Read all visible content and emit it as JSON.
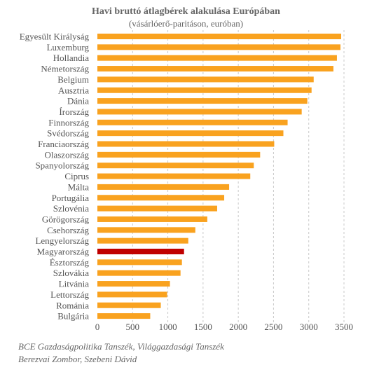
{
  "chart_data": {
    "type": "bar",
    "orientation": "horizontal",
    "title": "Havi bruttó átlagbérek alakulása Európában",
    "subtitle": "(vásárlóerő-paritáson, euróban)",
    "categories": [
      "Egyesült Királyság",
      "Luxemburg",
      "Hollandia",
      "Németország",
      "Belgium",
      "Ausztria",
      "Dánia",
      "Írország",
      "Finnország",
      "Svédország",
      "Franciaország",
      "Olaszország",
      "Spanyolország",
      "Ciprus",
      "Málta",
      "Portugália",
      "Szlovénia",
      "Görögország",
      "Csehország",
      "Lengyelország",
      "Magyarország",
      "Észtország",
      "Szlovákia",
      "Litvánia",
      "Lettország",
      "Románia",
      "Bulgária"
    ],
    "values": [
      3460,
      3450,
      3400,
      3350,
      3070,
      3040,
      2980,
      2900,
      2700,
      2640,
      2510,
      2310,
      2220,
      2170,
      1870,
      1800,
      1700,
      1560,
      1390,
      1290,
      1230,
      1200,
      1180,
      1030,
      990,
      900,
      750
    ],
    "highlight": "Magyarország",
    "xlim": [
      0,
      3500
    ],
    "xticks": [
      0,
      500,
      1000,
      1500,
      2000,
      2500,
      3000,
      3500
    ],
    "grid": "vertical-dashed",
    "colors": {
      "bar": "#F9A21F",
      "highlight": "#C00000",
      "grid": "#C8C8C8"
    }
  },
  "source": {
    "line1": "BCE Gazdaságpolitika Tanszék, Világgazdasági Tanszék",
    "line2": "Berezvai Zombor, Szebeni Dávid"
  }
}
